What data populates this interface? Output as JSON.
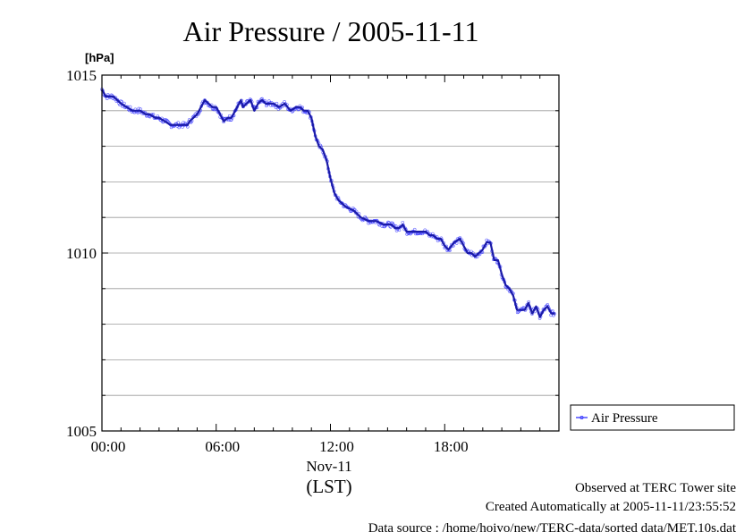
{
  "chart_data": {
    "type": "line",
    "title": "Air Pressure / 2005-11-11",
    "ylabel": "[hPa]",
    "ylim": [
      1005,
      1015
    ],
    "yticks": [
      1005,
      1010,
      1015
    ],
    "ytick_labels": [
      "1005",
      "1010",
      "1015"
    ],
    "xlim_hours": [
      0,
      24
    ],
    "xticks_hours": [
      0,
      6,
      12,
      18
    ],
    "xtick_labels": [
      "00:00",
      "06:00",
      "12:00",
      "18:00"
    ],
    "date_label": "Nov-11",
    "time_zone_label": "(LST)",
    "grid": true,
    "legend": {
      "position": "right",
      "entries": [
        "Air Pressure"
      ]
    },
    "series": [
      {
        "name": "Air Pressure",
        "color": "#3333ff",
        "x_hours": [
          0.0,
          0.1,
          0.2,
          0.4,
          0.6,
          0.8,
          1.0,
          1.3,
          1.6,
          1.8,
          2.0,
          2.3,
          2.5,
          2.8,
          3.0,
          3.3,
          3.6,
          3.9,
          4.2,
          4.5,
          4.6,
          4.8,
          5.0,
          5.2,
          5.4,
          5.6,
          5.8,
          6.0,
          6.2,
          6.4,
          6.6,
          6.8,
          7.0,
          7.2,
          7.3,
          7.4,
          7.6,
          7.8,
          8.0,
          8.2,
          8.4,
          8.6,
          8.8,
          9.0,
          9.3,
          9.6,
          9.9,
          10.2,
          10.4,
          10.6,
          10.8,
          11.0,
          11.2,
          11.4,
          11.6,
          11.8,
          12.0,
          12.2,
          12.4,
          12.6,
          12.8,
          13.2,
          13.6,
          14.0,
          14.4,
          14.8,
          15.2,
          15.4,
          15.6,
          15.8,
          16.0,
          16.2,
          16.4,
          16.6,
          16.8,
          17.0,
          17.2,
          17.4,
          17.6,
          17.8,
          18.0,
          18.2,
          18.5,
          18.8,
          19.0,
          19.2,
          19.4,
          19.6,
          19.8,
          20.0,
          20.2,
          20.4,
          20.6,
          20.8,
          21.0,
          21.2,
          21.4,
          21.6,
          21.8,
          22.0,
          22.2,
          22.4,
          22.6,
          22.8,
          23.0,
          23.2,
          23.4,
          23.6,
          23.8
        ],
        "values": [
          1014.6,
          1014.5,
          1014.4,
          1014.4,
          1014.4,
          1014.3,
          1014.2,
          1014.1,
          1014.0,
          1014.0,
          1014.0,
          1013.9,
          1013.9,
          1013.8,
          1013.8,
          1013.7,
          1013.6,
          1013.6,
          1013.6,
          1013.6,
          1013.7,
          1013.8,
          1013.9,
          1014.1,
          1014.3,
          1014.2,
          1014.1,
          1014.1,
          1013.9,
          1013.7,
          1013.8,
          1013.8,
          1014.0,
          1014.2,
          1014.3,
          1014.1,
          1014.2,
          1014.3,
          1014.0,
          1014.2,
          1014.3,
          1014.2,
          1014.2,
          1014.2,
          1014.1,
          1014.2,
          1014.0,
          1014.1,
          1014.1,
          1014.0,
          1014.0,
          1013.8,
          1013.3,
          1013.0,
          1012.9,
          1012.6,
          1012.1,
          1011.7,
          1011.5,
          1011.4,
          1011.3,
          1011.2,
          1011.0,
          1010.9,
          1010.9,
          1010.8,
          1010.8,
          1010.7,
          1010.7,
          1010.8,
          1010.6,
          1010.6,
          1010.6,
          1010.6,
          1010.6,
          1010.6,
          1010.5,
          1010.5,
          1010.4,
          1010.4,
          1010.2,
          1010.1,
          1010.3,
          1010.4,
          1010.2,
          1010.0,
          1010.0,
          1009.9,
          1010.0,
          1010.1,
          1010.3,
          1010.3,
          1009.8,
          1009.8,
          1009.4,
          1009.1,
          1009.0,
          1008.8,
          1008.4,
          1008.4,
          1008.4,
          1008.6,
          1008.3,
          1008.5,
          1008.2,
          1008.4,
          1008.5,
          1008.3,
          1008.3
        ]
      }
    ]
  },
  "footer": {
    "observed": "Observed at TERC Tower site",
    "created": "Created Automatically at 2005-11-11/23:55:52",
    "source": "Data source : /home/hoivo/new/TERC-data/sorted  data/MET.10s.dat"
  }
}
